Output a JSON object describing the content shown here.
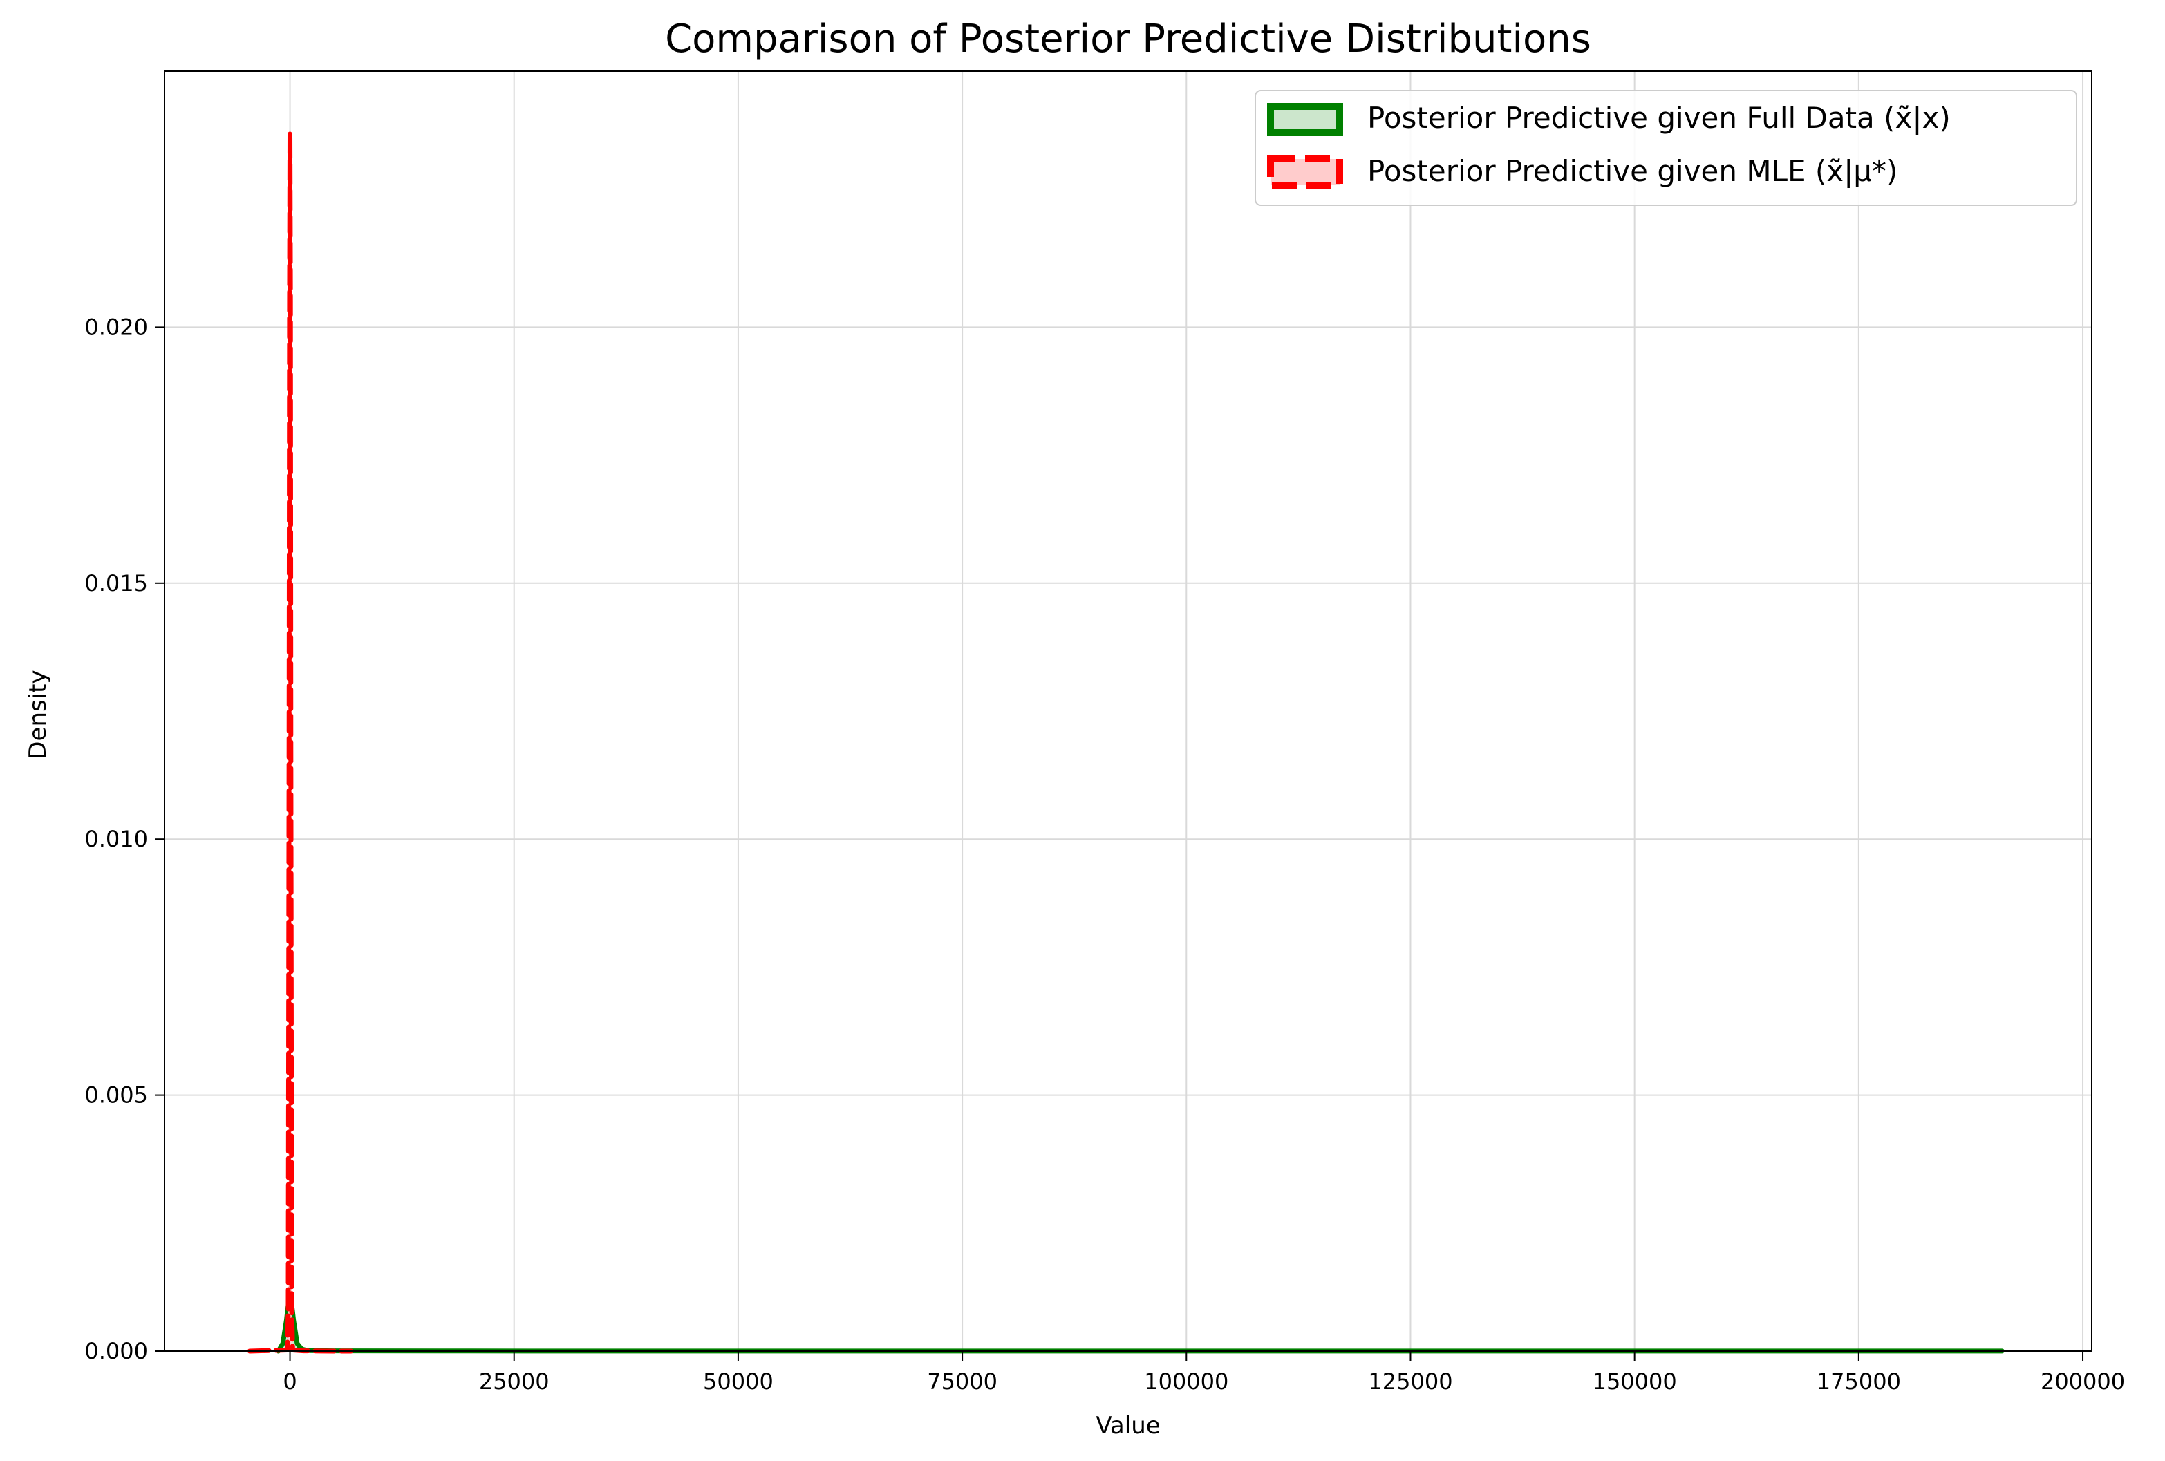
{
  "chart_data": {
    "type": "area",
    "title": "Comparison of Posterior Predictive Distributions",
    "xlabel": "Value",
    "ylabel": "Density",
    "xlim": [
      -14000,
      201000
    ],
    "ylim": [
      0,
      0.025
    ],
    "xticks": [
      0,
      25000,
      50000,
      75000,
      100000,
      125000,
      150000,
      175000,
      200000
    ],
    "xtick_labels": [
      "0",
      "25000",
      "50000",
      "75000",
      "100000",
      "125000",
      "150000",
      "175000",
      "200000"
    ],
    "yticks": [
      0.0,
      0.005,
      0.01,
      0.015,
      0.02
    ],
    "ytick_labels": [
      "0.000",
      "0.005",
      "0.010",
      "0.015",
      "0.020"
    ],
    "grid": true,
    "legend_position": "top-right",
    "series": [
      {
        "name": "Posterior Predictive given Full Data (x̃|x)",
        "color": "#008000",
        "fill": "#cce6cc",
        "line_style": "solid",
        "x": [
          -1300,
          -800,
          -400,
          -200,
          0,
          200,
          400,
          800,
          1300,
          2000,
          5000,
          20000,
          50000,
          100000,
          150000,
          191000
        ],
        "y": [
          0,
          0.00015,
          0.0006,
          0.0009,
          0.001,
          0.0009,
          0.0006,
          0.00015,
          4e-05,
          1e-05,
          5e-06,
          3e-06,
          2e-06,
          2e-06,
          2e-06,
          1e-06
        ]
      },
      {
        "name": "Posterior Predictive given MLE (x̃|μ*)",
        "color": "#ff0000",
        "fill": "#ffcccc",
        "line_style": "dashed",
        "x": [
          -4500,
          -300,
          -200,
          -100,
          -50,
          0,
          50,
          100,
          200,
          300,
          1500,
          3500,
          6800
        ],
        "y": [
          0,
          2e-05,
          0.0008,
          0.0118,
          0.0205,
          0.0238,
          0.0205,
          0.0118,
          0.0008,
          2e-05,
          5e-06,
          2e-06,
          0
        ]
      }
    ]
  }
}
